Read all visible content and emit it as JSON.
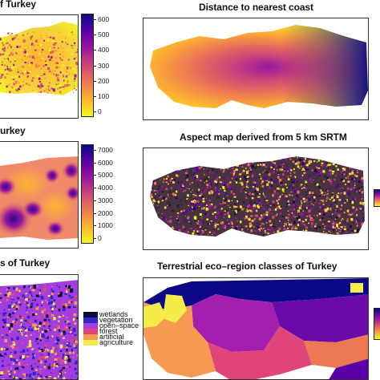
{
  "titles": {
    "tl": "f Turkey",
    "tr": "Distance to nearest coast",
    "ml": "urkey",
    "mr": "Aspect map derived from 5 km SRTM",
    "bl": "s of Turkey",
    "br": "Terrestrial eco–region classes of Turkey"
  },
  "colorbar_top": {
    "ticks": [
      "600",
      "500",
      "400",
      "300",
      "200",
      "100",
      "0"
    ],
    "colors": [
      "#0d0887",
      "#5a00a6",
      "#9b179e",
      "#cc4778",
      "#ed7953",
      "#fdb42f",
      "#f0f921"
    ]
  },
  "colorbar_mid": {
    "ticks": [
      "7000",
      "6000",
      "5000",
      "4000",
      "3000",
      "2000",
      "1000",
      "0"
    ],
    "colors": [
      "#0d0887",
      "#5a00a6",
      "#9b179e",
      "#cc4778",
      "#ed7953",
      "#fdb42f",
      "#f0f921"
    ]
  },
  "landcover_legend": {
    "items": [
      {
        "label": "wetlands",
        "color": "#0a0a3c"
      },
      {
        "label": "vegetation",
        "color": "#2f28c9"
      },
      {
        "label": "open–space",
        "color": "#a43de0"
      },
      {
        "label": "forest",
        "color": "#e0457a"
      },
      {
        "label": "artificial",
        "color": "#f69a52"
      },
      {
        "label": "agriculture",
        "color": "#f4ec4a"
      }
    ]
  }
}
